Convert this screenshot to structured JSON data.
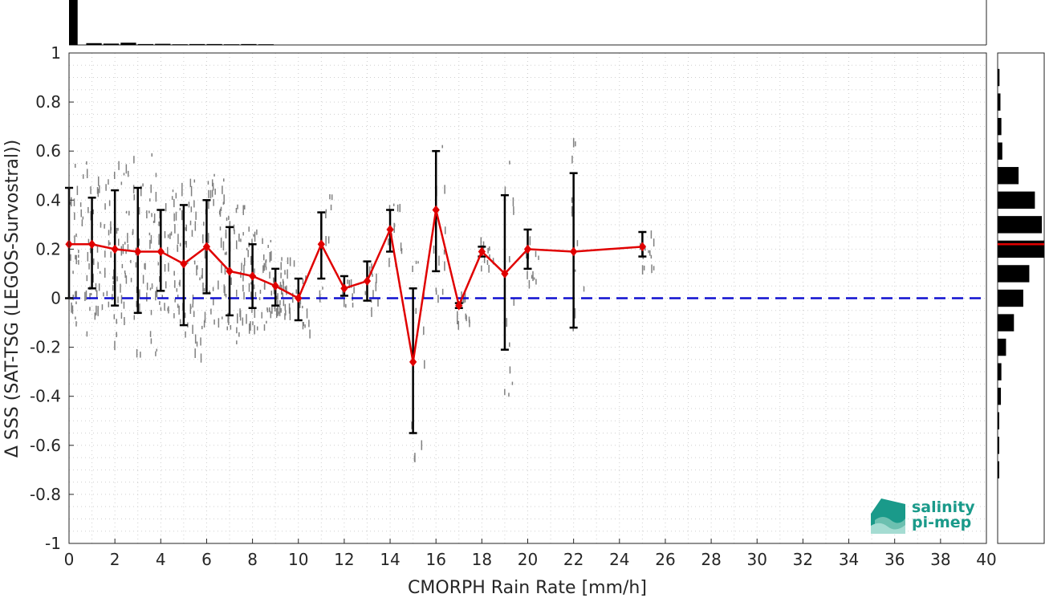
{
  "chart_data": {
    "type": "line",
    "xlabel": "CMORPH Rain Rate [mm/h]",
    "ylabel": "Δ SSS (SAT-TSG (LEGOS-Survostral))",
    "xlim": [
      0,
      40
    ],
    "ylim": [
      -1,
      1
    ],
    "x_ticks": [
      0,
      2,
      4,
      6,
      8,
      10,
      12,
      14,
      16,
      18,
      20,
      22,
      24,
      26,
      28,
      30,
      32,
      34,
      36,
      38,
      40
    ],
    "y_ticks": [
      1,
      0.8,
      0.6,
      0.4,
      0.2,
      0,
      -0.2,
      -0.4,
      -0.6,
      -0.8,
      -1
    ],
    "y_tick_labels": [
      "1",
      "0.8",
      "0.6",
      "0.4",
      "0.2",
      "0",
      "-0.2",
      "-0.4",
      "-0.6",
      "-0.8",
      "-1"
    ],
    "grid": true,
    "reference_line": {
      "y": 0,
      "color": "#1010d0",
      "style": "dashed"
    },
    "mean_color": "#e00000",
    "errorbar_color": "#000000",
    "scatter_color": "#808080",
    "series": [
      {
        "x": [
          0,
          1,
          2,
          3,
          4,
          5,
          6,
          7,
          8,
          9,
          10,
          11,
          12,
          13,
          14,
          15,
          16,
          17,
          18,
          19,
          20,
          22,
          25
        ],
        "values": [
          0.22,
          0.22,
          0.2,
          0.19,
          0.19,
          0.14,
          0.21,
          0.11,
          0.09,
          0.05,
          0.0,
          0.22,
          0.04,
          0.07,
          0.28,
          -0.26,
          0.36,
          -0.03,
          0.19,
          0.1,
          0.2,
          0.19,
          0.21
        ],
        "lower": [
          0.0,
          0.04,
          -0.03,
          -0.06,
          0.03,
          -0.11,
          0.02,
          -0.07,
          -0.04,
          -0.03,
          -0.09,
          0.08,
          0.01,
          -0.01,
          0.19,
          -0.55,
          0.11,
          -0.04,
          0.17,
          -0.21,
          0.12,
          -0.12,
          0.17
        ],
        "upper": [
          0.45,
          0.41,
          0.44,
          0.45,
          0.36,
          0.38,
          0.4,
          0.29,
          0.22,
          0.12,
          0.08,
          0.35,
          0.09,
          0.15,
          0.36,
          0.04,
          0.6,
          -0.02,
          0.21,
          0.42,
          0.28,
          0.51,
          0.27
        ]
      }
    ],
    "top_histogram": {
      "bin_edges_x": [
        0,
        0.75,
        1.5,
        2.25,
        3,
        3.75,
        4.5,
        5.25,
        6,
        6.75,
        7.5,
        8.25,
        9
      ],
      "relative_counts": [
        1.0,
        0.04,
        0.03,
        0.05,
        0.02,
        0.025,
        0.015,
        0.02,
        0.02,
        0.015,
        0.02,
        0.015
      ]
    },
    "right_histogram": {
      "bin_centers_y": [
        0.9,
        0.8,
        0.7,
        0.6,
        0.5,
        0.4,
        0.3,
        0.2,
        0.1,
        0.0,
        -0.1,
        -0.2,
        -0.3,
        -0.4,
        -0.5,
        -0.6,
        -0.7
      ],
      "relative_counts": [
        0.04,
        0.06,
        0.08,
        0.1,
        0.45,
        0.8,
        0.95,
        1.0,
        0.68,
        0.55,
        0.35,
        0.18,
        0.08,
        0.07,
        0.03,
        0.03,
        0.02
      ],
      "mean_y": 0.22
    }
  },
  "logo": {
    "line1": "salinity",
    "line2": "pi-mep",
    "color": "#1a9a8a"
  }
}
